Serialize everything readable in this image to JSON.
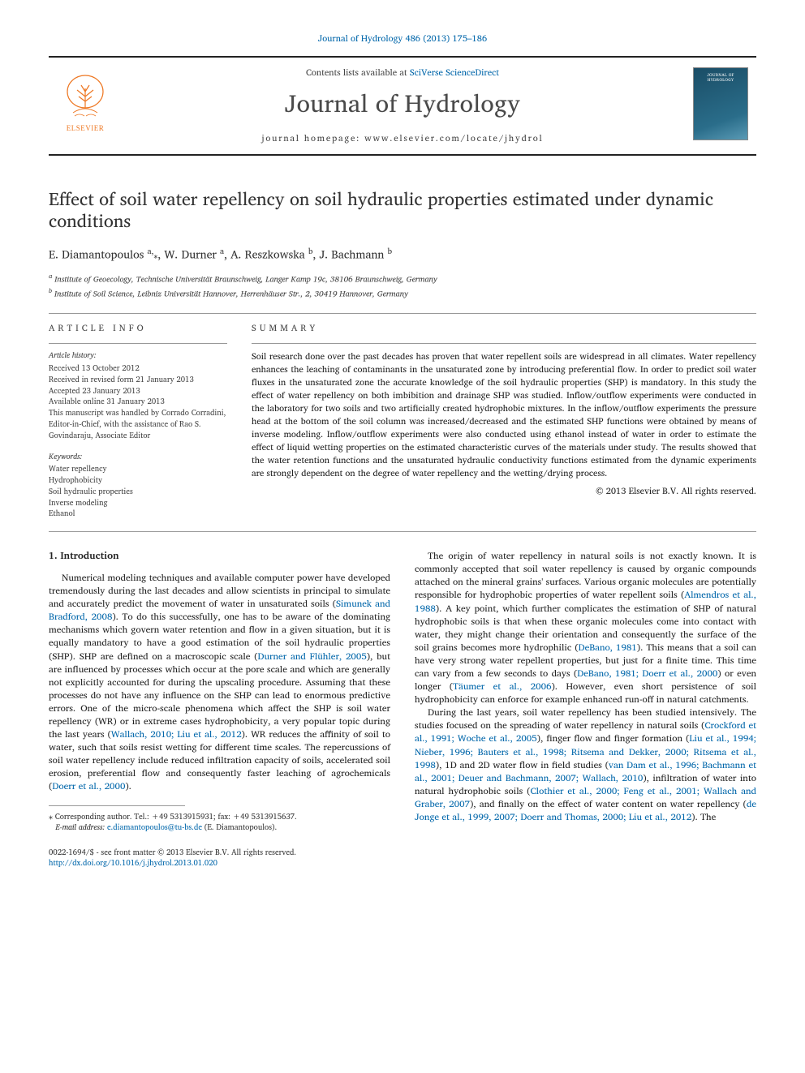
{
  "top_citation": "Journal of Hydrology 486 (2013) 175–186",
  "masthead": {
    "contents_prefix": "Contents lists available at ",
    "contents_link": "SciVerse ScienceDirect",
    "journal_name": "Journal of Hydrology",
    "homepage_prefix": "journal homepage: ",
    "homepage_url": "www.elsevier.com/locate/jhydrol",
    "publisher_name": "ELSEVIER",
    "cover_caption": "JOURNAL OF HYDROLOGY"
  },
  "article": {
    "title": "Effect of soil water repellency on soil hydraulic properties estimated under dynamic conditions",
    "authors_html": "E. Diamantopoulos <sup>a,</sup><span class='star'>⁎</span>, W. Durner <sup>a</sup>, A. Reszkowska <sup>b</sup>, J. Bachmann <sup>b</sup>",
    "affiliations": {
      "a": "Institute of Geoecology, Technische Universität Braunschweig, Langer Kamp 19c, 38106 Braunschweig, Germany",
      "b": "Institute of Soil Science, Leibniz Universität Hannover, Herrenhäuser Str., 2, 30419 Hannover, Germany"
    }
  },
  "info": {
    "heading": "ARTICLE INFO",
    "history_label": "Article history:",
    "history": [
      "Received 13 October 2012",
      "Received in revised form 21 January 2013",
      "Accepted 23 January 2013",
      "Available online 31 January 2013",
      "This manuscript was handled by Corrado Corradini, Editor-in-Chief, with the assistance of Rao S. Govindaraju, Associate Editor"
    ],
    "keywords_label": "Keywords:",
    "keywords": [
      "Water repellency",
      "Hydrophobicity",
      "Soil hydraulic properties",
      "Inverse modeling",
      "Ethanol"
    ]
  },
  "summary": {
    "heading": "SUMMARY",
    "text": "Soil research done over the past decades has proven that water repellent soils are widespread in all climates. Water repellency enhances the leaching of contaminants in the unsaturated zone by introducing preferential flow. In order to predict soil water fluxes in the unsaturated zone the accurate knowledge of the soil hydraulic properties (SHP) is mandatory. In this study the effect of water repellency on both imbibition and drainage SHP was studied. Inflow/outflow experiments were conducted in the laboratory for two soils and two artificially created hydrophobic mixtures. In the inflow/outflow experiments the pressure head at the bottom of the soil column was increased/decreased and the estimated SHP functions were obtained by means of inverse modeling. Inflow/outflow experiments were also conducted using ethanol instead of water in order to estimate the effect of liquid wetting properties on the estimated characteristic curves of the materials under study. The results showed that the water retention functions and the unsaturated hydraulic conductivity functions estimated from the dynamic experiments are strongly dependent on the degree of water repellency and the wetting/drying process.",
    "copyright": "© 2013 Elsevier B.V. All rights reserved."
  },
  "intro": {
    "heading": "1. Introduction",
    "para1": "Numerical modeling techniques and available computer power have developed tremendously during the last decades and allow scientists in principal to simulate and accurately predict the movement of water in unsaturated soils (<span class='link'>Simunek and Bradford, 2008</span>). To do this successfully, one has to be aware of the dominating mechanisms which govern water retention and flow in a given situation, but it is equally mandatory to have a good estimation of the soil hydraulic properties (SHP). SHP are defined on a macroscopic scale (<span class='link'>Durner and Flühler, 2005</span>), but are influenced by processes which occur at the pore scale and which are generally not explicitly accounted for during the upscaling procedure. Assuming that these processes do not have any influence on the SHP can lead to enormous predictive errors. One of the micro-scale phenomena which affect the SHP is soil water repellency (WR) or in extreme cases hydrophobicity, a very popular topic during the last years (<span class='link'>Wallach, 2010; Liu et al., 2012</span>). WR reduces the affinity of soil to water, such that soils resist wetting for different time scales. The repercussions of soil water repellency include reduced infiltration capacity of soils, accelerated soil erosion, preferential flow and consequently faster leaching of agrochemicals (<span class='link'>Doerr et al., 2000</span>).",
    "para2": "The origin of water repellency in natural soils is not exactly known. It is commonly accepted that soil water repellency is caused by organic compounds attached on the mineral grains' surfaces. Various organic molecules are potentially responsible for hydrophobic properties of water repellent soils (<span class='link'>Almendros et al., 1988</span>). A key point, which further complicates the estimation of SHP of natural hydrophobic soils is that when these organic molecules come into contact with water, they might change their orientation and consequently the surface of the soil grains becomes more hydrophilic (<span class='link'>DeBano, 1981</span>). This means that a soil can have very strong water repellent properties, but just for a finite time. This time can vary from a few seconds to days (<span class='link'>DeBano, 1981; Doerr et al., 2000</span>) or even longer (<span class='link'>Täumer et al., 2006</span>). However, even short persistence of soil hydrophobicity can enforce for example enhanced run-off in natural catchments.",
    "para3": "During the last years, soil water repellency has been studied intensively. The studies focused on the spreading of water repellency in natural soils (<span class='link'>Crockford et al., 1991; Woche et al., 2005</span>), finger flow and finger formation (<span class='link'>Liu et al., 1994; Nieber, 1996; Bauters et al., 1998; Ritsema and Dekker, 2000; Ritsema et al., 1998</span>), 1D and 2D water flow in field studies (<span class='link'>van Dam et al., 1996; Bachmann et al., 2001; Deuer and Bachmann, 2007; Wallach, 2010</span>), infiltration of water into natural hydrophobic soils (<span class='link'>Clothier et al., 2000; Feng et al., 2001; Wallach and Graber, 2007</span>), and finally on the effect of water content on water repellency (<span class='link'>de Jonge et al., 1999, 2007; Doerr and Thomas, 2000; Liu et al., 2012</span>). The"
  },
  "footnote": {
    "corr": "Corresponding author. Tel.: +49 5313915931; fax: +49 5313915637.",
    "email_label": "E-mail address:",
    "email": "e.diamantopoulos@tu-bs.de",
    "email_owner": "(E. Diamantopoulos)."
  },
  "bottom": {
    "issn_line": "0022-1694/$ - see front matter © 2013 Elsevier B.V. All rights reserved.",
    "doi": "http://dx.doi.org/10.1016/j.jhydrol.2013.01.020"
  },
  "colors": {
    "link": "#0066aa",
    "rule": "#999999",
    "text": "#222222",
    "muted": "#444444",
    "elsevier_orange": "#ee7722",
    "cover_dark": "#1a4d66"
  }
}
